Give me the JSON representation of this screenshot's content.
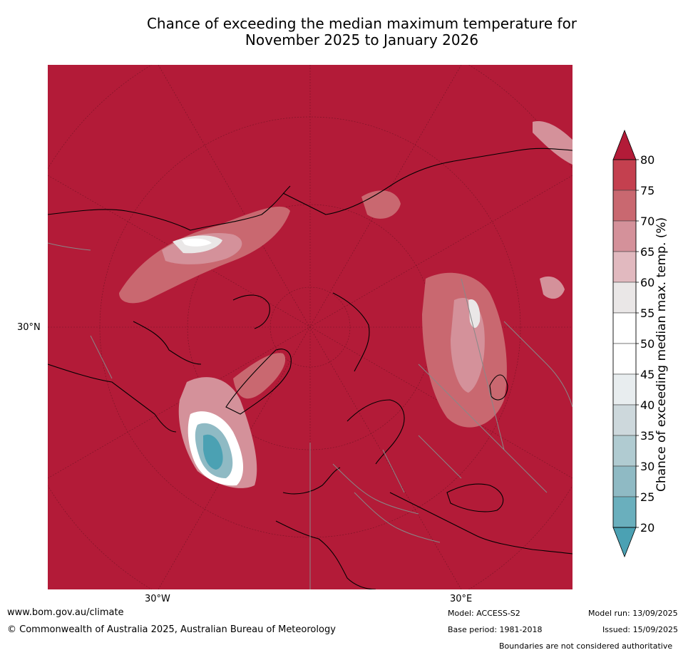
{
  "title": {
    "line1": "Chance of exceeding the median maximum temperature for",
    "line2": "November 2025 to January 2026"
  },
  "map": {
    "background_color": "#b31b38",
    "lat_label": "30°N",
    "lon_labels": [
      "30°W",
      "30°E"
    ]
  },
  "colorbar": {
    "title": "Chance of exceeding median max. temp. (%)",
    "ticks": [
      "80",
      "75",
      "70",
      "65",
      "60",
      "55",
      "50",
      "45",
      "40",
      "35",
      "30",
      "25",
      "20"
    ],
    "colors": [
      "#c4404f",
      "#c96870",
      "#d4919a",
      "#e1b9bf",
      "#eae7e7",
      "#ffffff",
      "#ffffff",
      "#e8edef",
      "#cdd8dc",
      "#b0cbd1",
      "#8fbac4",
      "#6aafbd"
    ],
    "top_color": "#b31b38",
    "bottom_color": "#4ba1b3"
  },
  "footer": {
    "url": "www.bom.gov.au/climate",
    "copyright": "© Commonwealth of Australia 2025, Australian Bureau of Meteorology",
    "model": "Model: ACCESS-S2",
    "base_period": "Base period: 1981-2018",
    "model_run": "Model run: 13/09/2025",
    "issued": "Issued: 15/09/2025",
    "disclaimer": "Boundaries are not considered authoritative"
  }
}
